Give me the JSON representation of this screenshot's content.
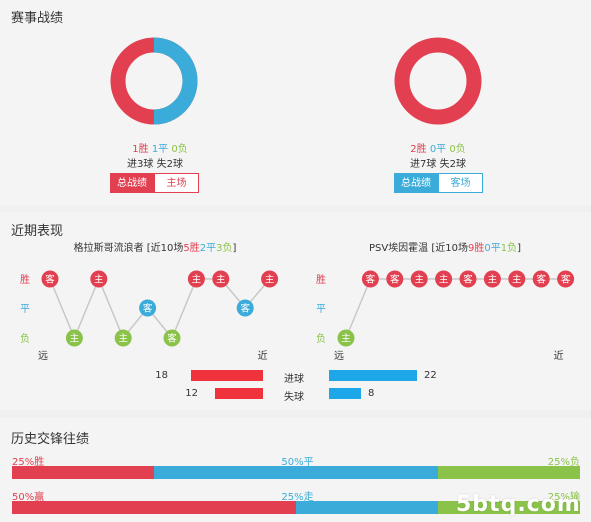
{
  "sections": {
    "record": "赛事战绩",
    "recent": "近期表现",
    "h2h": "历史交锋往绩"
  },
  "home": {
    "stats": {
      "win": "1胜",
      "draw": "1平",
      "loss": "0负"
    },
    "goals": "进3球 失2球",
    "tabs": [
      "总战绩",
      "主场"
    ],
    "donut": {
      "red": 50,
      "blue": 50,
      "green": 0
    },
    "recent_title_name": "格拉斯哥流浪者",
    "recent_title_prefix": " [近10场",
    "recent_title_win": "5胜",
    "recent_title_draw": "2平",
    "recent_title_loss": "3负",
    "recent_title_suffix": "]",
    "form": [
      {
        "result": "win",
        "venue": "客"
      },
      {
        "result": "loss",
        "venue": "主"
      },
      {
        "result": "win",
        "venue": "主"
      },
      {
        "result": "loss",
        "venue": "主"
      },
      {
        "result": "draw",
        "venue": "客"
      },
      {
        "result": "loss",
        "venue": "客"
      },
      {
        "result": "win",
        "venue": "主"
      },
      {
        "result": "win",
        "venue": "主"
      },
      {
        "result": "draw",
        "venue": "客"
      },
      {
        "result": "win",
        "venue": "主"
      }
    ]
  },
  "away": {
    "stats": {
      "win": "2胜",
      "draw": "0平",
      "loss": "0负"
    },
    "goals": "进7球 失2球",
    "tabs": [
      "总战绩",
      "客场"
    ],
    "donut": {
      "red": 100,
      "blue": 0,
      "green": 0
    },
    "recent_title_name": "PSV埃因霍温",
    "recent_title_prefix": " [近10场",
    "recent_title_win": "9胜",
    "recent_title_draw": "0平",
    "recent_title_loss": "1负",
    "recent_title_suffix": "]",
    "form": [
      {
        "result": "loss",
        "venue": "主"
      },
      {
        "result": "win",
        "venue": "客"
      },
      {
        "result": "win",
        "venue": "客"
      },
      {
        "result": "win",
        "venue": "主"
      },
      {
        "result": "win",
        "venue": "主"
      },
      {
        "result": "win",
        "venue": "客"
      },
      {
        "result": "win",
        "venue": "主"
      },
      {
        "result": "win",
        "venue": "主"
      },
      {
        "result": "win",
        "venue": "客"
      },
      {
        "result": "win",
        "venue": "客"
      }
    ]
  },
  "form_labels": {
    "win": "胜",
    "draw": "平",
    "loss": "负",
    "far": "远",
    "near": "近"
  },
  "goals_compare": {
    "scored_label": "进球",
    "conceded_label": "失球",
    "home_scored": 18,
    "home_conceded": 12,
    "away_scored": 22,
    "away_conceded": 8
  },
  "h2h": {
    "row1": {
      "left": "25%胜",
      "mid": "50%平",
      "right": "25%负",
      "parts": [
        25,
        50,
        25
      ]
    },
    "row2": {
      "left": "50%赢",
      "mid": "25%走",
      "right": "25%输",
      "parts": [
        50,
        25,
        25
      ]
    }
  },
  "watermark": "5btq.com",
  "colors": {
    "red": "#e24050",
    "blue": "#3bacd9",
    "green": "#8bc34a",
    "bar_red": "#f0323c",
    "bar_blue": "#1ea7e8"
  }
}
